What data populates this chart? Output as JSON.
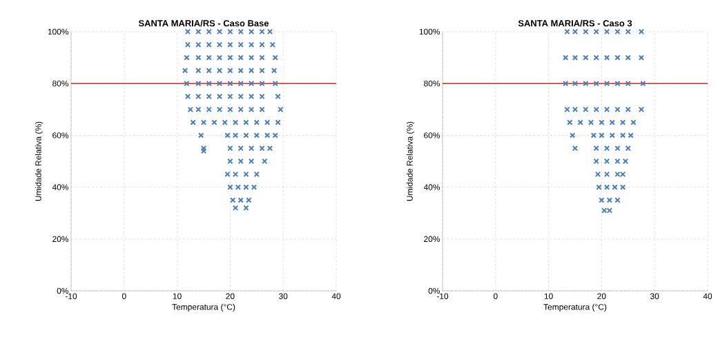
{
  "chart_data": [
    {
      "type": "scatter",
      "title": "SANTA MARIA/RS - Caso  Base",
      "xlabel": "Temperatura (°C)",
      "ylabel": "Umidade Relativa (%)",
      "xlim": [
        -10,
        40
      ],
      "xticks": [
        -10,
        0,
        10,
        20,
        30,
        40
      ],
      "ylim": [
        0,
        100
      ],
      "yticks": [
        {
          "value": 0,
          "label": "0%"
        },
        {
          "value": 20,
          "label": "20%"
        },
        {
          "value": 40,
          "label": "40%"
        },
        {
          "value": 60,
          "label": "60%"
        },
        {
          "value": 80,
          "label": "80%"
        },
        {
          "value": 100,
          "label": "100%"
        }
      ],
      "grid": true,
      "marker": "cross",
      "ref_lines": [
        {
          "axis": "y",
          "value": 80,
          "color": "#c00000"
        }
      ],
      "series": [
        {
          "color": "#4a7ebb",
          "x": [
            12,
            14,
            16,
            18,
            20,
            22,
            24,
            26,
            27.5,
            12,
            14,
            16,
            18,
            20,
            22,
            24,
            26,
            28,
            11.8,
            14,
            16,
            18,
            20,
            22,
            24,
            26,
            28.5,
            11.5,
            14,
            16,
            18,
            20,
            22,
            24,
            26,
            28.3,
            11.8,
            14,
            16,
            18,
            20,
            22,
            24,
            26,
            28.5,
            12,
            14,
            16,
            18,
            20,
            22,
            24,
            26,
            29,
            12.5,
            14,
            16,
            18,
            20,
            22,
            24,
            26,
            29.5,
            13,
            15,
            17,
            19,
            21,
            23,
            25,
            27,
            29,
            14.5,
            19.5,
            21,
            23,
            25,
            27,
            28.5,
            15,
            20,
            22,
            24,
            26,
            27.5,
            15,
            20,
            22,
            24,
            26.5,
            19.5,
            21,
            23,
            25,
            20,
            21.5,
            23,
            24.5,
            20.5,
            22,
            23.5,
            21,
            23
          ],
          "values": [
            100,
            100,
            100,
            100,
            100,
            100,
            100,
            100,
            100,
            95,
            95,
            95,
            95,
            95,
            95,
            95,
            95,
            95,
            90,
            90,
            90,
            90,
            90,
            90,
            90,
            90,
            90,
            85,
            85,
            85,
            85,
            85,
            85,
            85,
            85,
            85,
            80,
            80,
            80,
            80,
            80,
            80,
            80,
            80,
            80,
            75,
            75,
            75,
            75,
            75,
            75,
            75,
            75,
            75,
            70,
            70,
            70,
            70,
            70,
            70,
            70,
            70,
            70,
            65,
            65,
            65,
            65,
            65,
            65,
            65,
            65,
            65,
            60,
            60,
            60,
            60,
            60,
            60,
            60,
            55,
            55,
            55,
            55,
            55,
            55,
            54,
            50,
            50,
            50,
            50,
            45,
            45,
            45,
            45,
            40,
            40,
            40,
            40,
            35,
            35,
            35,
            32,
            32
          ]
        }
      ]
    },
    {
      "type": "scatter",
      "title": "SANTA MARIA/RS - Caso  3",
      "xlabel": "Temperatura (°C)",
      "ylabel": "Umidade Relativa (%)",
      "xlim": [
        -10,
        40
      ],
      "xticks": [
        -10,
        0,
        10,
        20,
        30,
        40
      ],
      "ylim": [
        0,
        100
      ],
      "yticks": [
        {
          "value": 0,
          "label": "0%"
        },
        {
          "value": 20,
          "label": "20%"
        },
        {
          "value": 40,
          "label": "40%"
        },
        {
          "value": 60,
          "label": "60%"
        },
        {
          "value": 80,
          "label": "80%"
        },
        {
          "value": 100,
          "label": "100%"
        }
      ],
      "grid": true,
      "marker": "cross",
      "ref_lines": [
        {
          "axis": "y",
          "value": 80,
          "color": "#c00000"
        }
      ],
      "series": [
        {
          "color": "#4a7ebb",
          "x": [
            13.5,
            15,
            17,
            19,
            21,
            23,
            25,
            27.5,
            13.2,
            15,
            17,
            19,
            21,
            23,
            25,
            27.5,
            13.2,
            15,
            17,
            19,
            21,
            23,
            25,
            27.8,
            13.5,
            15,
            17,
            19,
            21,
            23,
            25,
            27.5,
            14,
            16,
            18,
            20,
            22,
            24,
            26,
            14.5,
            18.5,
            20,
            22,
            24,
            25.5,
            15,
            19,
            21,
            23,
            25,
            19,
            21,
            23,
            24.5,
            19.3,
            21,
            23,
            24,
            19.5,
            21,
            22.5,
            24,
            20,
            21.5,
            23,
            20.5,
            21.5
          ],
          "values": [
            100,
            100,
            100,
            100,
            100,
            100,
            100,
            100,
            90,
            90,
            90,
            90,
            90,
            90,
            90,
            90,
            80,
            80,
            80,
            80,
            80,
            80,
            80,
            80,
            70,
            70,
            70,
            70,
            70,
            70,
            70,
            70,
            65,
            65,
            65,
            65,
            65,
            65,
            65,
            60,
            60,
            60,
            60,
            60,
            60,
            55,
            55,
            55,
            55,
            55,
            50,
            50,
            50,
            50,
            45,
            45,
            45,
            45,
            40,
            40,
            40,
            40,
            35,
            35,
            35,
            31,
            31
          ]
        }
      ]
    }
  ]
}
